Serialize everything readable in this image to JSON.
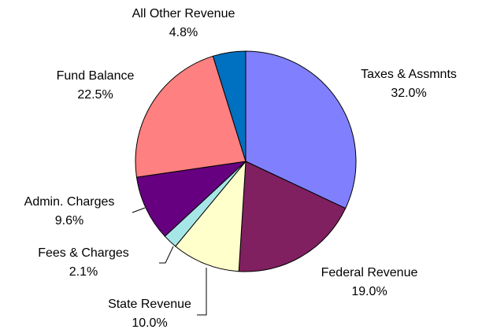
{
  "chart_data": {
    "type": "pie",
    "categories": [
      "Taxes & Assmnts",
      "Federal Revenue",
      "State Revenue",
      "Fees & Charges",
      "Admin. Charges",
      "Fund Balance",
      "All Other Revenue"
    ],
    "values": [
      32.0,
      19.0,
      10.0,
      2.1,
      9.6,
      22.5,
      4.8
    ],
    "value_labels": [
      "32.0%",
      "19.0%",
      "10.0%",
      "2.1%",
      "9.6%",
      "22.5%",
      "4.8%"
    ],
    "colors": [
      "#8080ff",
      "#802060",
      "#ffffcc",
      "#a6e6e6",
      "#660080",
      "#ff8080",
      "#0070c0"
    ]
  }
}
